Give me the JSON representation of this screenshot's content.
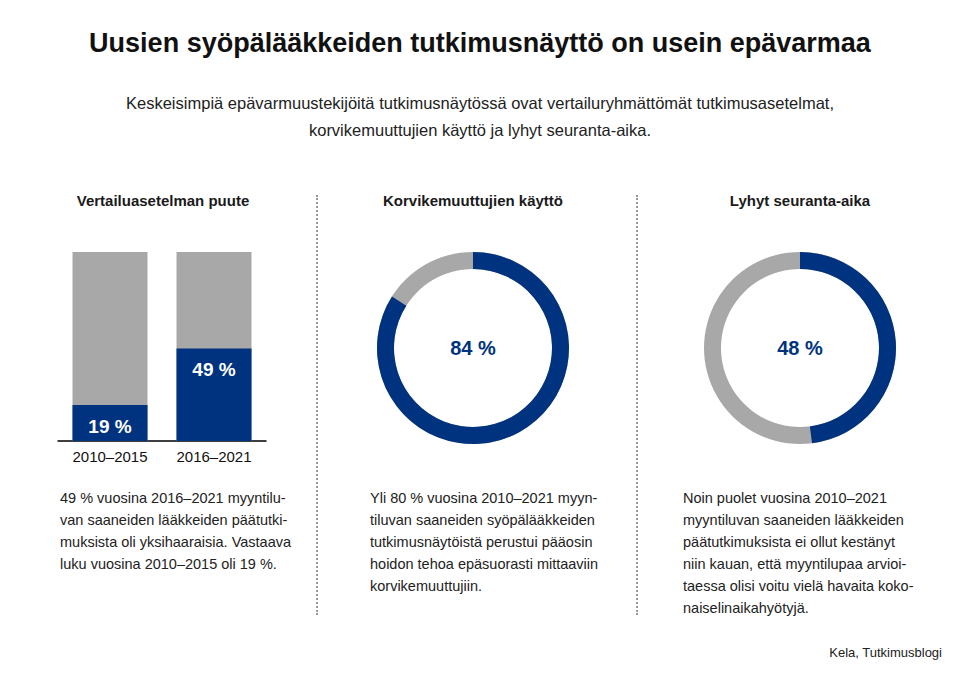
{
  "title": "Uusien syöpälääkkeiden tutkimusnäyttö on usein epävarmaa",
  "subtitle": [
    "Keskeisimpiä epävarmuustekijöitä tutkimusnäytössä ovat vertailuryhmättömät tutkimusasetelmat,",
    "korvikemuuttujien käyttö ja lyhyt seuranta-aika."
  ],
  "source": "Kela, Tutkimusblogi",
  "chart_data": [
    {
      "type": "bar",
      "title": "Vertailuasetelman puute",
      "categories": [
        "2010–2015",
        "2016–2021"
      ],
      "values": [
        19,
        49
      ],
      "value_labels": [
        "19 %",
        "49 %"
      ],
      "color": "#00337f",
      "ylim": [
        0,
        100
      ],
      "data_labels": true,
      "tick_labels": "x",
      "annotations": [
        "49 % vuosina 2016–2021 myyntilu-",
        "van saaneiden lääkkeiden päätutki-",
        "muksista oli yksihaaraisia. Vastaava",
        "luku vuosina 2010–2015 oli 19 %."
      ]
    },
    {
      "type": "gauge",
      "title": "Korvikemuuttujien käyttö",
      "values": [
        84
      ],
      "value_labels": [
        "84 %"
      ],
      "color": "#00337f",
      "ylim": [
        0,
        100
      ],
      "data_labels": true,
      "tick_labels": false,
      "annotations": [
        "Yli 80 % vuosina 2010–2021 myyn-",
        "tiluvan saaneiden syöpälääkkeiden",
        "tutkimusnäytöistä perustui pääosin",
        "hoidon tehoa epäsuorasti mittaaviin",
        "korvikemuuttujiin."
      ]
    },
    {
      "type": "gauge",
      "title": "Lyhyt seuranta-aika",
      "values": [
        48
      ],
      "value_labels": [
        "48 %"
      ],
      "color": "#00337f",
      "ylim": [
        0,
        100
      ],
      "data_labels": true,
      "tick_labels": false,
      "annotations": [
        "Noin puolet vuosina 2010–2021",
        "myyntiluvan saaneiden lääkkeiden",
        "päätutkimuksista ei ollut kestänyt",
        "niin kauan, että myyntilupaa arvioi-",
        "taessa olisi voitu vielä havaita koko-",
        "naiselinaikahyötyjä."
      ]
    }
  ]
}
